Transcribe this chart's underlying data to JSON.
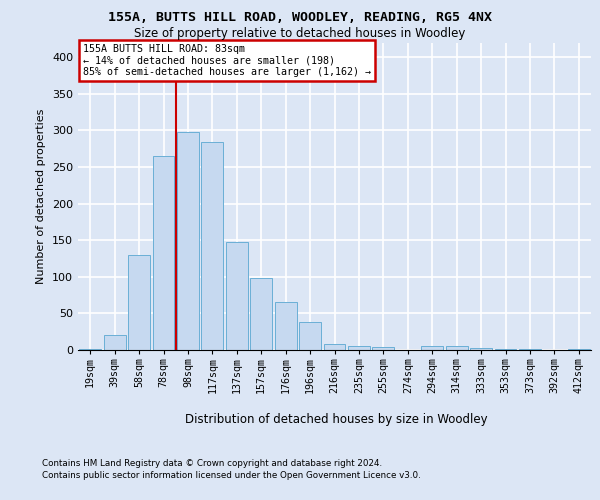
{
  "title1": "155A, BUTTS HILL ROAD, WOODLEY, READING, RG5 4NX",
  "title2": "Size of property relative to detached houses in Woodley",
  "xlabel": "Distribution of detached houses by size in Woodley",
  "ylabel": "Number of detached properties",
  "categories": [
    "19sqm",
    "39sqm",
    "58sqm",
    "78sqm",
    "98sqm",
    "117sqm",
    "137sqm",
    "157sqm",
    "176sqm",
    "196sqm",
    "216sqm",
    "235sqm",
    "255sqm",
    "274sqm",
    "294sqm",
    "314sqm",
    "333sqm",
    "353sqm",
    "373sqm",
    "392sqm",
    "412sqm"
  ],
  "values": [
    2,
    20,
    130,
    265,
    298,
    284,
    147,
    98,
    65,
    38,
    8,
    6,
    4,
    0,
    5,
    5,
    3,
    2,
    1,
    0,
    1
  ],
  "bar_color": "#c6d9f0",
  "bar_edge_color": "#6aafd6",
  "vline_color": "#cc0000",
  "vline_pos": 3.5,
  "annotation_line1": "155A BUTTS HILL ROAD: 83sqm",
  "annotation_line2": "← 14% of detached houses are smaller (198)",
  "annotation_line3": "85% of semi-detached houses are larger (1,162) →",
  "annotation_box_facecolor": "#ffffff",
  "annotation_box_edgecolor": "#cc0000",
  "ylim": [
    0,
    420
  ],
  "yticks": [
    0,
    50,
    100,
    150,
    200,
    250,
    300,
    350,
    400
  ],
  "bg_color": "#dce6f5",
  "grid_color": "#ffffff",
  "footnote1": "Contains HM Land Registry data © Crown copyright and database right 2024.",
  "footnote2": "Contains public sector information licensed under the Open Government Licence v3.0."
}
